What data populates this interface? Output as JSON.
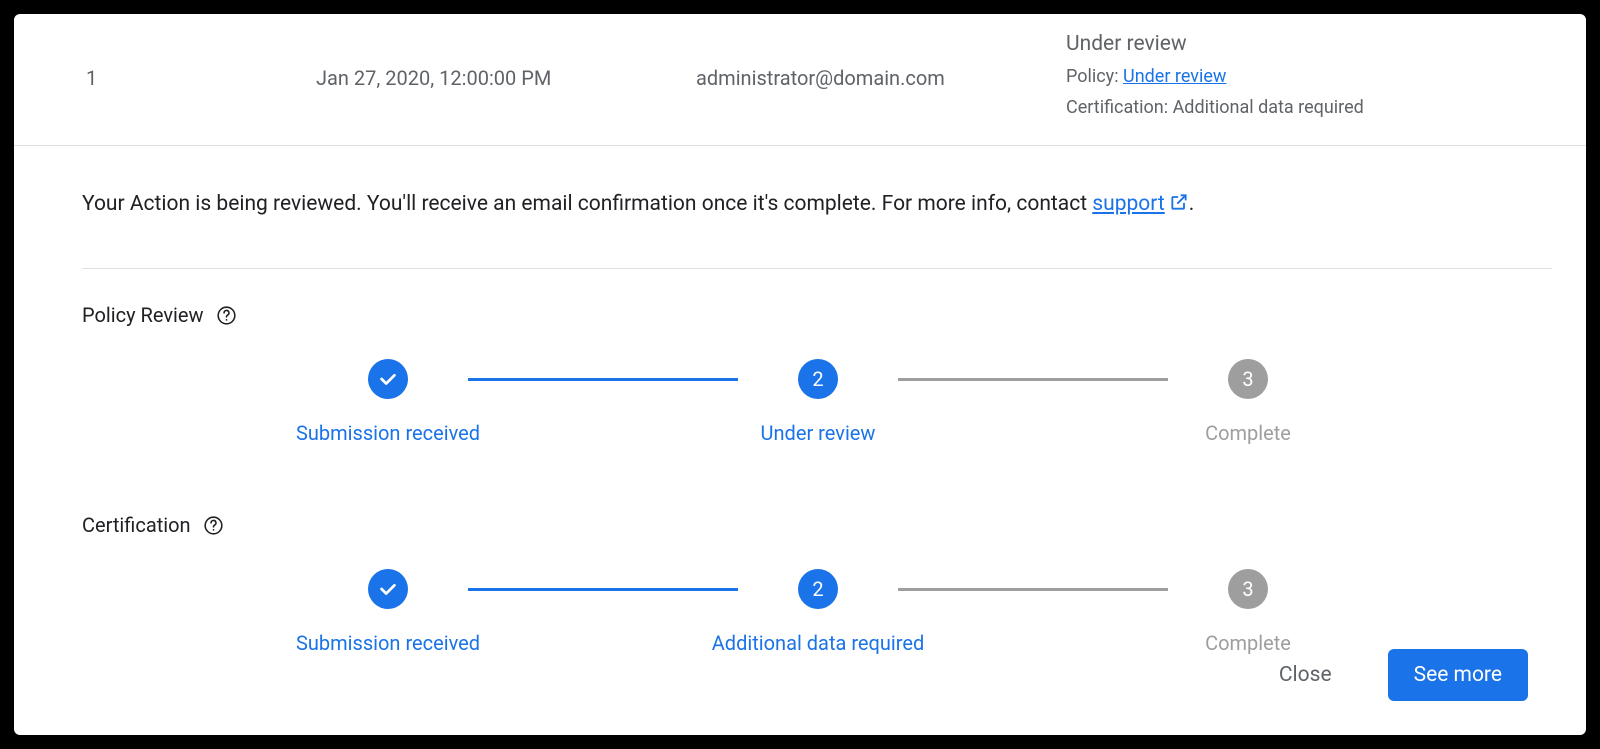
{
  "colors": {
    "primary": "#1a73e8",
    "primary_line": "#1a73e8",
    "inactive": "#9e9e9e",
    "text_secondary": "#5f6368",
    "text_primary": "#202124",
    "divider": "#e0e0e0",
    "white": "#ffffff"
  },
  "header": {
    "number": "1",
    "date": "Jan 27, 2020, 12:00:00 PM",
    "email": "administrator@domain.com",
    "status_title": "Under review",
    "policy_label": "Policy: ",
    "policy_value": "Under review",
    "cert_label": "Certification: ",
    "cert_value": "Additional data required"
  },
  "banner": {
    "text_before": "Your Action is being reviewed. You'll receive an email confirmation once it's complete. For more info, contact ",
    "link_text": "support",
    "text_after": "."
  },
  "sections": [
    {
      "title": "Policy Review",
      "steps": [
        {
          "label": "Submission received",
          "state": "done",
          "icon": "check"
        },
        {
          "label": "Under review",
          "state": "current",
          "icon": "2"
        },
        {
          "label": "Complete",
          "state": "pending",
          "icon": "3"
        }
      ]
    },
    {
      "title": "Certification",
      "steps": [
        {
          "label": "Submission received",
          "state": "done",
          "icon": "check"
        },
        {
          "label": "Additional data required",
          "state": "current",
          "icon": "2"
        },
        {
          "label": "Complete",
          "state": "pending",
          "icon": "3"
        }
      ]
    }
  ],
  "footer": {
    "close": "Close",
    "see_more": "See more"
  }
}
